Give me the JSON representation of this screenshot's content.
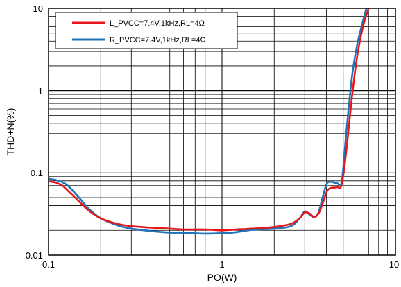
{
  "chart_data": {
    "type": "line",
    "title": "",
    "xlabel": "PO(W)",
    "ylabel": "THD+N(%)",
    "xscale": "log",
    "yscale": "log",
    "xlim": [
      0.1,
      10
    ],
    "ylim": [
      0.01,
      10
    ],
    "grid": true,
    "legend_position": "top-left",
    "x_ticks": [
      "0.1",
      "1",
      "10"
    ],
    "y_ticks": [
      "0.01",
      "0.1",
      "1",
      "10"
    ],
    "series": [
      {
        "name": "L_PVCC=7.4V,1kHz,RL=4Ω",
        "color": "#e8161b",
        "points": [
          [
            0.1,
            0.079
          ],
          [
            0.11,
            0.076
          ],
          [
            0.12,
            0.07
          ],
          [
            0.13,
            0.06
          ],
          [
            0.15,
            0.045
          ],
          [
            0.17,
            0.035
          ],
          [
            0.2,
            0.028
          ],
          [
            0.25,
            0.024
          ],
          [
            0.3,
            0.0225
          ],
          [
            0.4,
            0.0215
          ],
          [
            0.5,
            0.021
          ],
          [
            0.6,
            0.0205
          ],
          [
            0.8,
            0.0205
          ],
          [
            1.0,
            0.02
          ],
          [
            1.2,
            0.0205
          ],
          [
            1.5,
            0.021
          ],
          [
            2.0,
            0.022
          ],
          [
            2.5,
            0.024
          ],
          [
            2.8,
            0.028
          ],
          [
            3.0,
            0.033
          ],
          [
            3.2,
            0.032
          ],
          [
            3.4,
            0.029
          ],
          [
            3.6,
            0.032
          ],
          [
            3.8,
            0.042
          ],
          [
            4.0,
            0.058
          ],
          [
            4.2,
            0.065
          ],
          [
            4.6,
            0.067
          ],
          [
            4.9,
            0.072
          ],
          [
            5.2,
            0.18
          ],
          [
            5.6,
            0.8
          ],
          [
            6.0,
            2.5
          ],
          [
            6.5,
            6.0
          ],
          [
            7.0,
            10.0
          ]
        ]
      },
      {
        "name": "R_PVCC=7.4V,1kHz,RL=4Ω",
        "color": "#2173b8",
        "points": [
          [
            0.1,
            0.085
          ],
          [
            0.11,
            0.082
          ],
          [
            0.12,
            0.077
          ],
          [
            0.13,
            0.069
          ],
          [
            0.15,
            0.05
          ],
          [
            0.17,
            0.037
          ],
          [
            0.2,
            0.028
          ],
          [
            0.25,
            0.023
          ],
          [
            0.3,
            0.021
          ],
          [
            0.4,
            0.0195
          ],
          [
            0.5,
            0.0188
          ],
          [
            0.6,
            0.0187
          ],
          [
            0.8,
            0.0183
          ],
          [
            1.0,
            0.0185
          ],
          [
            1.2,
            0.019
          ],
          [
            1.5,
            0.0203
          ],
          [
            2.0,
            0.021
          ],
          [
            2.5,
            0.0225
          ],
          [
            2.8,
            0.028
          ],
          [
            3.0,
            0.034
          ],
          [
            3.2,
            0.031
          ],
          [
            3.4,
            0.029
          ],
          [
            3.6,
            0.033
          ],
          [
            3.8,
            0.05
          ],
          [
            4.0,
            0.072
          ],
          [
            4.2,
            0.078
          ],
          [
            4.6,
            0.075
          ],
          [
            4.9,
            0.078
          ],
          [
            5.2,
            0.3
          ],
          [
            5.6,
            1.4
          ],
          [
            6.0,
            3.5
          ],
          [
            6.5,
            7.0
          ],
          [
            6.8,
            10.0
          ]
        ]
      }
    ]
  }
}
